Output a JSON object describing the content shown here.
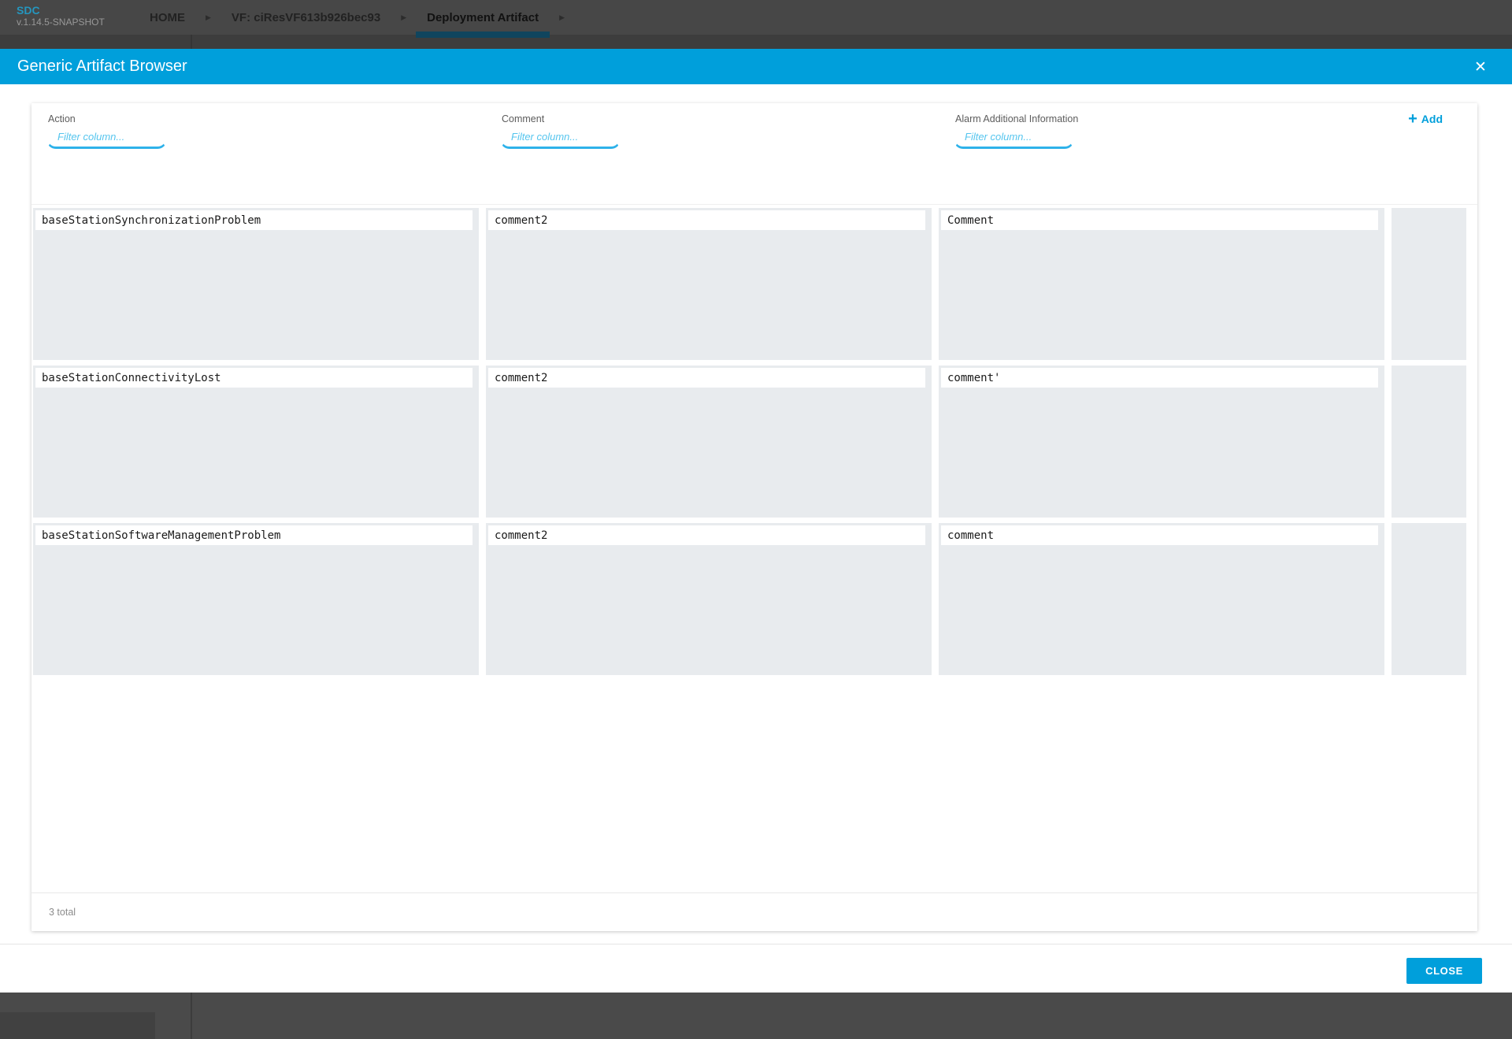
{
  "app_header": {
    "logo": {
      "title": "SDC",
      "version": "v.1.14.5-SNAPSHOT"
    },
    "breadcrumb_arrow": "▶",
    "breadcrumbs": [
      {
        "label": "HOME"
      },
      {
        "label": "VF: ciResVF613b926bec93"
      },
      {
        "label": "Deployment Artifact"
      }
    ]
  },
  "modal": {
    "title": "Generic Artifact Browser",
    "close_icon": "✕",
    "toolbar": {
      "columns": [
        {
          "label": "Action",
          "filter_placeholder": "Filter column..."
        },
        {
          "label": "Comment",
          "filter_placeholder": "Filter column..."
        },
        {
          "label": "Alarm Additional Information",
          "filter_placeholder": "Filter column..."
        }
      ],
      "add_button": {
        "icon": "+",
        "label": "Add"
      }
    },
    "rows": [
      {
        "action": "baseStationSynchronizationProblem",
        "comment": "comment2",
        "alarm_additional_information": "Comment"
      },
      {
        "action": "baseStationConnectivityLost",
        "comment": "comment2",
        "alarm_additional_information": "comment'"
      },
      {
        "action": "baseStationSoftwareManagementProblem",
        "comment": "comment2",
        "alarm_additional_information": "comment"
      }
    ],
    "footer": {
      "total_label": "3 total"
    },
    "close_button_label": "CLOSE"
  },
  "colors": {
    "accent": "#009fdb",
    "cell_background": "#e8ebee",
    "active_tab_underline": "#10455e",
    "header_background": "#474747"
  }
}
